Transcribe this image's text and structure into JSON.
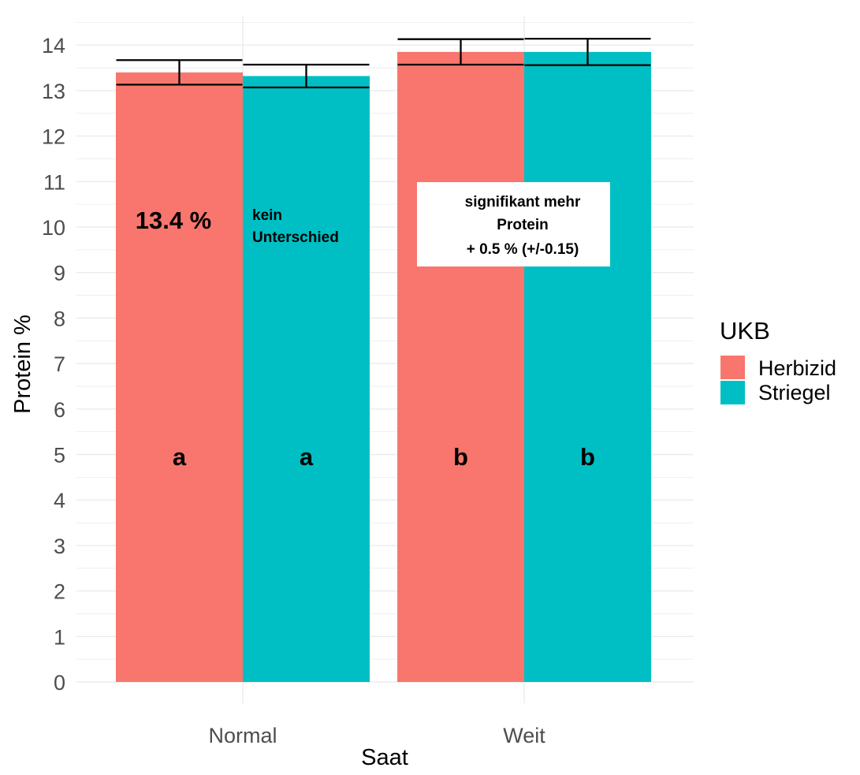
{
  "chart_data": {
    "type": "bar",
    "xlabel": "Saat",
    "ylabel": "Protein %",
    "ylim": [
      0,
      14
    ],
    "yticks": [
      0,
      1,
      2,
      3,
      4,
      5,
      6,
      7,
      8,
      9,
      10,
      11,
      12,
      13,
      14
    ],
    "grid": true,
    "categories": [
      "Normal",
      "Weit"
    ],
    "legend": {
      "title": "UKB",
      "position": "right"
    },
    "series": [
      {
        "name": "Herbizid",
        "color": "#F8766D",
        "values": [
          13.4,
          13.85
        ],
        "error": [
          0.27,
          0.28
        ]
      },
      {
        "name": "Striegel",
        "color": "#00BFC4",
        "values": [
          13.32,
          13.85
        ],
        "error": [
          0.25,
          0.29
        ]
      }
    ],
    "group_letters": [
      [
        "a",
        "a"
      ],
      [
        "b",
        "b"
      ]
    ],
    "annotations": {
      "value_label": "13.4 %",
      "no_difference": [
        "kein",
        "Unterschied"
      ],
      "significant": [
        "signifikant mehr",
        "Protein",
        "+ 0.5 % (+/-0.15)"
      ]
    }
  }
}
